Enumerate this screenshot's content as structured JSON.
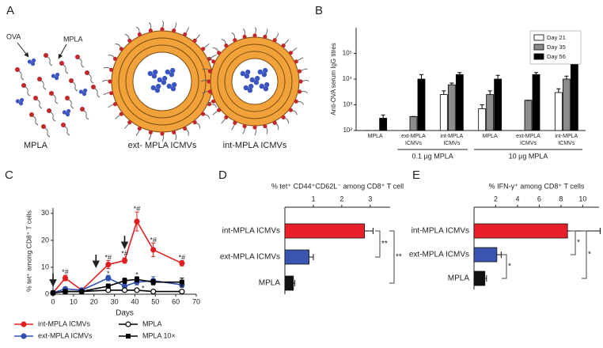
{
  "panel_a": {
    "letter": "A",
    "ova_label": "OVA",
    "mpla_label": "MPLA",
    "captions": [
      {
        "text": "MPLA",
        "color": "#222222"
      },
      {
        "text": "ext- MPLA ICMVs",
        "color": "#3b4fa8"
      },
      {
        "text": "int-MPLA ICMVs",
        "color": "#d42a2a"
      }
    ]
  },
  "chart_data": [
    {
      "letter": "B",
      "type": "bar",
      "log_scale": true,
      "ylabel": "Anti-OVA serum IgG titres",
      "categories": [
        "MPLA",
        "ext-MPLA ICMVs",
        "int-MPLA ICMVs",
        "MPLA",
        "ext-MPLA ICMVs",
        "int-MPLA ICMVs"
      ],
      "category_colors": [
        "#222222",
        "#3b4fa8",
        "#d42a2a",
        "#222222",
        "#3b4fa8",
        "#d42a2a"
      ],
      "groups": [
        "0.1 µg MPLA",
        "10 µg MPLA"
      ],
      "ylim": [
        100,
        1000000
      ],
      "yticks": [
        {
          "value": 100,
          "label": "10²"
        },
        {
          "value": 1000,
          "label": "10³"
        },
        {
          "value": 10000,
          "label": "10⁴"
        },
        {
          "value": 100000,
          "label": "10⁵"
        }
      ],
      "legend": "upper right",
      "series": [
        {
          "name": "Day 21",
          "color": "#ffffff",
          "values": [
            100,
            100,
            2500,
            700,
            100,
            3000
          ],
          "errors": [
            0,
            0,
            1000,
            300,
            0,
            1200
          ]
        },
        {
          "name": "Day 35",
          "color": "#8c8c8c",
          "values": [
            100,
            350,
            6000,
            2500,
            1500,
            10000
          ],
          "errors": [
            0,
            0,
            1000,
            1000,
            0,
            3000
          ]
        },
        {
          "name": "Day 56",
          "color": "#000000",
          "values": [
            300,
            10000,
            15000,
            10000,
            15000,
            150000
          ],
          "errors": [
            100,
            5000,
            3000,
            4000,
            3000,
            100000
          ]
        }
      ]
    },
    {
      "letter": "C",
      "type": "line",
      "xlabel": "Days",
      "ylabel": "% tet⁺ among CD8⁺ T cells",
      "x": [
        0,
        6,
        14,
        27,
        35,
        41,
        49,
        63
      ],
      "xlim": [
        0,
        70
      ],
      "xticks": [
        0,
        10,
        20,
        30,
        40,
        50,
        60,
        70
      ],
      "ylim": [
        0,
        32
      ],
      "yticks": [
        0,
        10,
        20,
        30
      ],
      "series": [
        {
          "name": "int-MPLA ICMVs",
          "color": "#e02020",
          "marker": "circle",
          "values": [
            0.5,
            6,
            1.5,
            11,
            12.5,
            27,
            16.5,
            11.5
          ],
          "errors": [
            0.3,
            1,
            0.5,
            1.5,
            1,
            3.5,
            2.5,
            1
          ]
        },
        {
          "name": "ext-MPLA ICMVs",
          "color": "#3050b0",
          "marker": "circle",
          "values": [
            0.5,
            2,
            1.5,
            6,
            3,
            4.5,
            5,
            3.5
          ],
          "errors": [
            0.2,
            0.5,
            0.3,
            1,
            0.8,
            1,
            1.5,
            1
          ]
        },
        {
          "name": "MPLA",
          "color": "#000000",
          "marker": "open-circle",
          "values": [
            0.5,
            1,
            1,
            1.5,
            1.5,
            1.5,
            1,
            1
          ],
          "errors": [
            0.2,
            0.3,
            0.2,
            0.3,
            0.3,
            0.3,
            0.3,
            0.3
          ]
        },
        {
          "name": "MPLA 10×",
          "color": "#000000",
          "marker": "square",
          "values": [
            0.5,
            1,
            1,
            3,
            5,
            5.5,
            4.5,
            4.5
          ],
          "errors": [
            0.2,
            0.3,
            0.3,
            0.8,
            1,
            1,
            1,
            1.5
          ]
        }
      ],
      "injections": [
        {
          "x": 0,
          "y": 3
        },
        {
          "x": 21,
          "y": 10
        },
        {
          "x": 35,
          "y": 17
        }
      ],
      "annotations": [
        {
          "text": "*#",
          "x": 6,
          "y": 8
        },
        {
          "text": "*#",
          "x": 27,
          "y": 13.5
        },
        {
          "text": "*#",
          "x": 35,
          "y": 15
        },
        {
          "text": "*#",
          "x": 41,
          "y": 31.5
        },
        {
          "text": "*#",
          "x": 49,
          "y": 20
        },
        {
          "text": "*#",
          "x": 63,
          "y": 13.5
        },
        {
          "text": "*",
          "x": 27,
          "y": 7.5
        },
        {
          "text": "*",
          "x": 41,
          "y": 7
        },
        {
          "text": "*",
          "x": 44,
          "y": 2
        }
      ]
    },
    {
      "letter": "D",
      "type": "hbar",
      "title": "% tet⁺ CD44⁺CD62L⁻ among CD8⁺ T cell",
      "categories": [
        "int-MPLA ICMVs",
        "ext-MPLA ICMVs",
        "MPLA"
      ],
      "colors": [
        "#e8202a",
        "#3a55b0",
        "#111111"
      ],
      "label_colors": [
        "#e02020",
        "#3050b0",
        "#111111"
      ],
      "values": [
        2.8,
        0.85,
        0.3
      ],
      "errors": [
        0.3,
        0.15,
        0.05
      ],
      "xlim": [
        0,
        3.7
      ],
      "xticks": [
        1,
        2,
        3
      ],
      "significance": [
        "**",
        "**"
      ]
    },
    {
      "letter": "E",
      "type": "hbar",
      "title": "% IFN-γ⁺ among CD8⁺ T cells",
      "categories": [
        "int-MPLA ICMVs",
        "ext-MPLA ICMVs",
        "MPLA"
      ],
      "colors": [
        "#e8202a",
        "#3a55b0",
        "#111111"
      ],
      "label_colors": [
        "#e02020",
        "#3050b0",
        "#111111"
      ],
      "values": [
        8.6,
        2.1,
        1.0
      ],
      "errors": [
        3,
        0.4,
        0.15
      ],
      "xlim": [
        0,
        11.5
      ],
      "xticks": [
        2,
        4,
        6,
        8,
        10
      ],
      "significance": [
        "*",
        "*",
        "*"
      ]
    }
  ]
}
